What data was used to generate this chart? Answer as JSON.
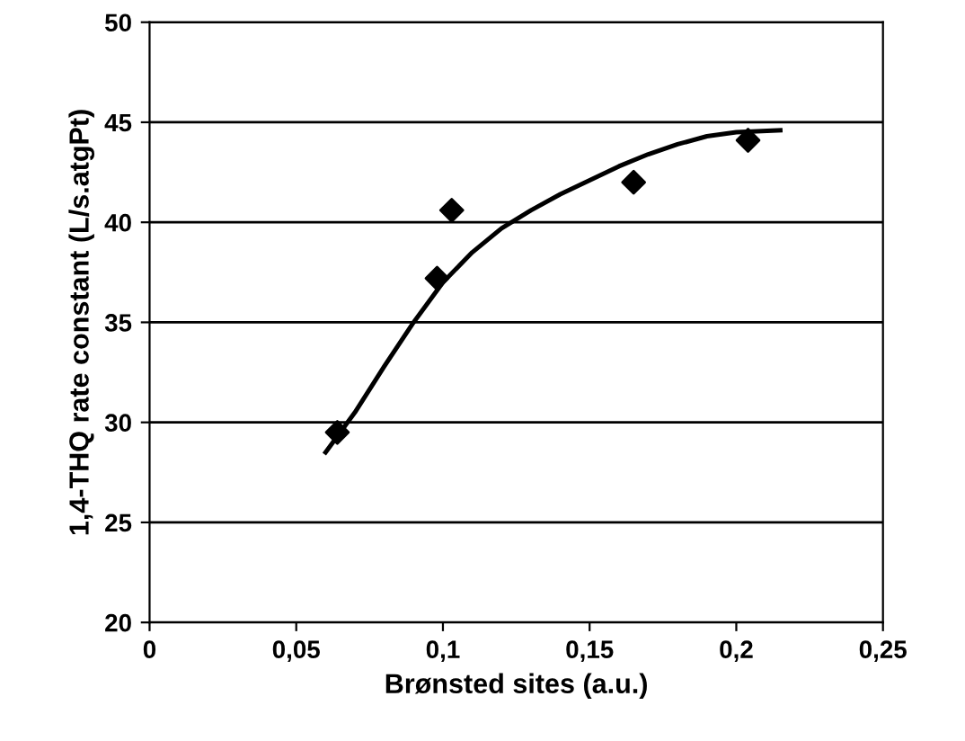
{
  "chart_data": {
    "type": "scatter",
    "xlabel": "Brønsted sites (a.u.)",
    "ylabel": "1,4-THQ rate constant (L/s.atgPt)",
    "xlim": [
      0,
      0.25
    ],
    "ylim": [
      20,
      50
    ],
    "xticks": [
      0,
      {
        "value": 0.05,
        "label": "0,05"
      },
      {
        "value": 0.1,
        "label": "0,1"
      },
      {
        "value": 0.15,
        "label": "0,15"
      },
      {
        "value": 0.2,
        "label": "0,2"
      },
      {
        "value": 0.25,
        "label": "0,25"
      }
    ],
    "yticks": [
      20,
      25,
      30,
      35,
      40,
      45,
      50
    ],
    "grid": "y",
    "legend": false,
    "series": [
      {
        "color": "#000000",
        "marker": "diamond",
        "x": [
          0.064,
          0.098,
          0.103,
          0.165,
          0.204
        ],
        "values": [
          29.5,
          37.2,
          40.6,
          42.0,
          44.1
        ]
      },
      {
        "type": "line",
        "color": "#000000",
        "marker": "none",
        "line_style": "solid",
        "x": [
          0.06,
          0.07,
          0.08,
          0.09,
          0.1,
          0.11,
          0.12,
          0.13,
          0.14,
          0.15,
          0.16,
          0.17,
          0.18,
          0.19,
          0.2,
          0.215
        ],
        "values": [
          28.5,
          30.5,
          32.8,
          35.0,
          37.0,
          38.5,
          39.7,
          40.6,
          41.4,
          42.1,
          42.8,
          43.4,
          43.9,
          44.3,
          44.5,
          44.6
        ]
      }
    ]
  }
}
